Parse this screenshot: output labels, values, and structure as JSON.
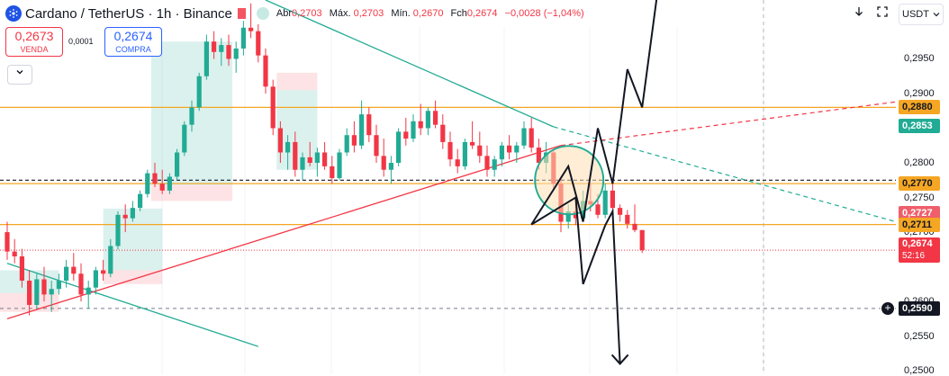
{
  "header": {
    "symbol_title": "Cardano / TetherUS · 1h · Binance",
    "ohlc": {
      "open_label": "Abr",
      "open": "0,2703",
      "high_label": "Máx.",
      "high": "0,2703",
      "low_label": "Mín.",
      "low": "0,2670",
      "close_label": "Fch",
      "close": "0,2674",
      "change": "−0,0028 (−1,04%)"
    }
  },
  "trade": {
    "sell_price": "0,2673",
    "sell_label": "VENDA",
    "spread": "0,0001",
    "buy_price": "0,2674",
    "buy_label": "COMPRA"
  },
  "toolbar": {
    "collapse_icon": "chevron-down-icon",
    "download_icon": "arrow-down-icon",
    "fullscreen_icon": "fullscreen-icon",
    "currency": "USDT"
  },
  "colors": {
    "up": "#22ab94",
    "down": "#f23645",
    "accent": "#2962ff",
    "orange": "#f5a623",
    "trendline_teal": "#22ab94",
    "trendline_red": "#f23645"
  },
  "chart_data": {
    "type": "candlestick",
    "symbol": "ADA/USDT",
    "timeframe": "1h",
    "ylim": [
      0.2495,
      0.3035
    ],
    "y_ticks": [
      "0,2950",
      "0,2900",
      "0,2800",
      "0,2750",
      "0,2700",
      "0,2600",
      "0,2550",
      "0,2500"
    ],
    "price_labels": [
      {
        "value": 0.288,
        "text": "0,2880",
        "kind": "orange"
      },
      {
        "value": 0.2853,
        "text": "0,2853",
        "kind": "teal"
      },
      {
        "value": 0.277,
        "text": "0,2770",
        "kind": "orange"
      },
      {
        "value": 0.2727,
        "text": "0,2727",
        "kind": "pink"
      },
      {
        "value": 0.2711,
        "text": "0,2711",
        "kind": "orange"
      },
      {
        "value": 0.2674,
        "text": "0,2674",
        "kind": "red",
        "countdown": "52:16"
      },
      {
        "value": 0.259,
        "text": "0,2590",
        "kind": "dark"
      }
    ],
    "horizontal_levels": [
      0.288,
      0.277,
      0.2711
    ],
    "current_price": 0.2674,
    "candles_ohlc": [
      [
        0.27,
        0.2715,
        0.266,
        0.2672
      ],
      [
        0.2672,
        0.269,
        0.2655,
        0.2665
      ],
      [
        0.2665,
        0.2676,
        0.262,
        0.263
      ],
      [
        0.263,
        0.2645,
        0.258,
        0.2595
      ],
      [
        0.2595,
        0.264,
        0.259,
        0.2632
      ],
      [
        0.2632,
        0.265,
        0.26,
        0.261
      ],
      [
        0.261,
        0.263,
        0.2585,
        0.2618
      ],
      [
        0.2618,
        0.264,
        0.261,
        0.263
      ],
      [
        0.263,
        0.266,
        0.262,
        0.265
      ],
      [
        0.265,
        0.267,
        0.263,
        0.264
      ],
      [
        0.264,
        0.2655,
        0.26,
        0.261
      ],
      [
        0.261,
        0.263,
        0.259,
        0.262
      ],
      [
        0.262,
        0.265,
        0.261,
        0.2645
      ],
      [
        0.2645,
        0.266,
        0.263,
        0.264
      ],
      [
        0.264,
        0.269,
        0.2635,
        0.268
      ],
      [
        0.268,
        0.273,
        0.2675,
        0.2725
      ],
      [
        0.2725,
        0.274,
        0.27,
        0.272
      ],
      [
        0.272,
        0.2745,
        0.2715,
        0.2735
      ],
      [
        0.2735,
        0.276,
        0.273,
        0.2755
      ],
      [
        0.2755,
        0.279,
        0.275,
        0.2785
      ],
      [
        0.2785,
        0.28,
        0.2765,
        0.277
      ],
      [
        0.277,
        0.279,
        0.2755,
        0.276
      ],
      [
        0.276,
        0.2785,
        0.2755,
        0.278
      ],
      [
        0.278,
        0.282,
        0.2775,
        0.2815
      ],
      [
        0.2815,
        0.286,
        0.281,
        0.2855
      ],
      [
        0.2855,
        0.289,
        0.2845,
        0.288
      ],
      [
        0.288,
        0.293,
        0.2875,
        0.2925
      ],
      [
        0.2925,
        0.2985,
        0.292,
        0.2975
      ],
      [
        0.2975,
        0.299,
        0.295,
        0.296
      ],
      [
        0.296,
        0.298,
        0.294,
        0.297
      ],
      [
        0.297,
        0.2985,
        0.294,
        0.295
      ],
      [
        0.295,
        0.2975,
        0.293,
        0.2965
      ],
      [
        0.2965,
        0.3005,
        0.2955,
        0.2995
      ],
      [
        0.2995,
        0.303,
        0.298,
        0.299
      ],
      [
        0.299,
        0.3,
        0.2945,
        0.2955
      ],
      [
        0.2955,
        0.2965,
        0.29,
        0.291
      ],
      [
        0.291,
        0.292,
        0.284,
        0.285
      ],
      [
        0.285,
        0.286,
        0.28,
        0.2815
      ],
      [
        0.2815,
        0.284,
        0.279,
        0.283
      ],
      [
        0.283,
        0.2845,
        0.278,
        0.279
      ],
      [
        0.279,
        0.2815,
        0.2775,
        0.2808
      ],
      [
        0.2808,
        0.283,
        0.2795,
        0.28
      ],
      [
        0.28,
        0.2822,
        0.278,
        0.2815
      ],
      [
        0.2815,
        0.283,
        0.279,
        0.2795
      ],
      [
        0.2795,
        0.281,
        0.277,
        0.2778
      ],
      [
        0.2778,
        0.282,
        0.2775,
        0.2815
      ],
      [
        0.2815,
        0.285,
        0.281,
        0.284
      ],
      [
        0.284,
        0.286,
        0.2815,
        0.2825
      ],
      [
        0.2825,
        0.289,
        0.282,
        0.287
      ],
      [
        0.287,
        0.288,
        0.283,
        0.284
      ],
      [
        0.284,
        0.2855,
        0.28,
        0.281
      ],
      [
        0.281,
        0.2835,
        0.278,
        0.279
      ],
      [
        0.279,
        0.281,
        0.277,
        0.28
      ],
      [
        0.28,
        0.285,
        0.2795,
        0.2845
      ],
      [
        0.2845,
        0.2865,
        0.2825,
        0.2835
      ],
      [
        0.2835,
        0.287,
        0.283,
        0.286
      ],
      [
        0.286,
        0.2885,
        0.284,
        0.285
      ],
      [
        0.285,
        0.288,
        0.284,
        0.2875
      ],
      [
        0.2875,
        0.289,
        0.285,
        0.2855
      ],
      [
        0.2855,
        0.287,
        0.282,
        0.283
      ],
      [
        0.283,
        0.2845,
        0.2795,
        0.2805
      ],
      [
        0.2805,
        0.282,
        0.2785,
        0.2795
      ],
      [
        0.2795,
        0.2835,
        0.279,
        0.283
      ],
      [
        0.283,
        0.286,
        0.282,
        0.2825
      ],
      [
        0.2825,
        0.2845,
        0.28,
        0.281
      ],
      [
        0.281,
        0.2825,
        0.278,
        0.279
      ],
      [
        0.279,
        0.281,
        0.278,
        0.2805
      ],
      [
        0.2805,
        0.283,
        0.2795,
        0.2825
      ],
      [
        0.2825,
        0.284,
        0.2805,
        0.2815
      ],
      [
        0.2815,
        0.283,
        0.28,
        0.2825
      ],
      [
        0.2825,
        0.286,
        0.282,
        0.285
      ],
      [
        0.285,
        0.2865,
        0.2815,
        0.2822
      ],
      [
        0.2822,
        0.2835,
        0.279,
        0.28
      ],
      [
        0.28,
        0.283,
        0.2785,
        0.2815
      ],
      [
        0.2815,
        0.282,
        0.276,
        0.277
      ],
      [
        0.277,
        0.278,
        0.27,
        0.2715
      ],
      [
        0.2715,
        0.274,
        0.2705,
        0.273
      ],
      [
        0.273,
        0.2745,
        0.271,
        0.272
      ],
      [
        0.272,
        0.276,
        0.2715,
        0.2745
      ],
      [
        0.2745,
        0.277,
        0.273,
        0.274
      ],
      [
        0.274,
        0.2755,
        0.272,
        0.2725
      ],
      [
        0.2725,
        0.277,
        0.272,
        0.276
      ],
      [
        0.276,
        0.2775,
        0.2725,
        0.2735
      ],
      [
        0.2735,
        0.274,
        0.2715,
        0.2725
      ],
      [
        0.2725,
        0.2732,
        0.2705,
        0.2712
      ],
      [
        0.2712,
        0.274,
        0.27,
        0.2703
      ],
      [
        0.2703,
        0.2703,
        0.267,
        0.2674
      ]
    ],
    "annotations": {
      "circle_center": {
        "x_index": 76,
        "y": 0.2775
      },
      "projection_path_up": [
        [
          71,
          0.2711
        ],
        [
          76,
          0.2795
        ],
        [
          78,
          0.2715
        ],
        [
          80,
          0.285
        ],
        [
          82,
          0.277
        ],
        [
          84,
          0.2935
        ],
        [
          86,
          0.288
        ],
        [
          88,
          0.304
        ]
      ],
      "projection_path_down": [
        [
          71,
          0.2711
        ],
        [
          77,
          0.275
        ],
        [
          78,
          0.2625
        ],
        [
          81,
          0.271
        ],
        [
          82,
          0.273
        ],
        [
          83,
          0.251
        ]
      ]
    }
  }
}
